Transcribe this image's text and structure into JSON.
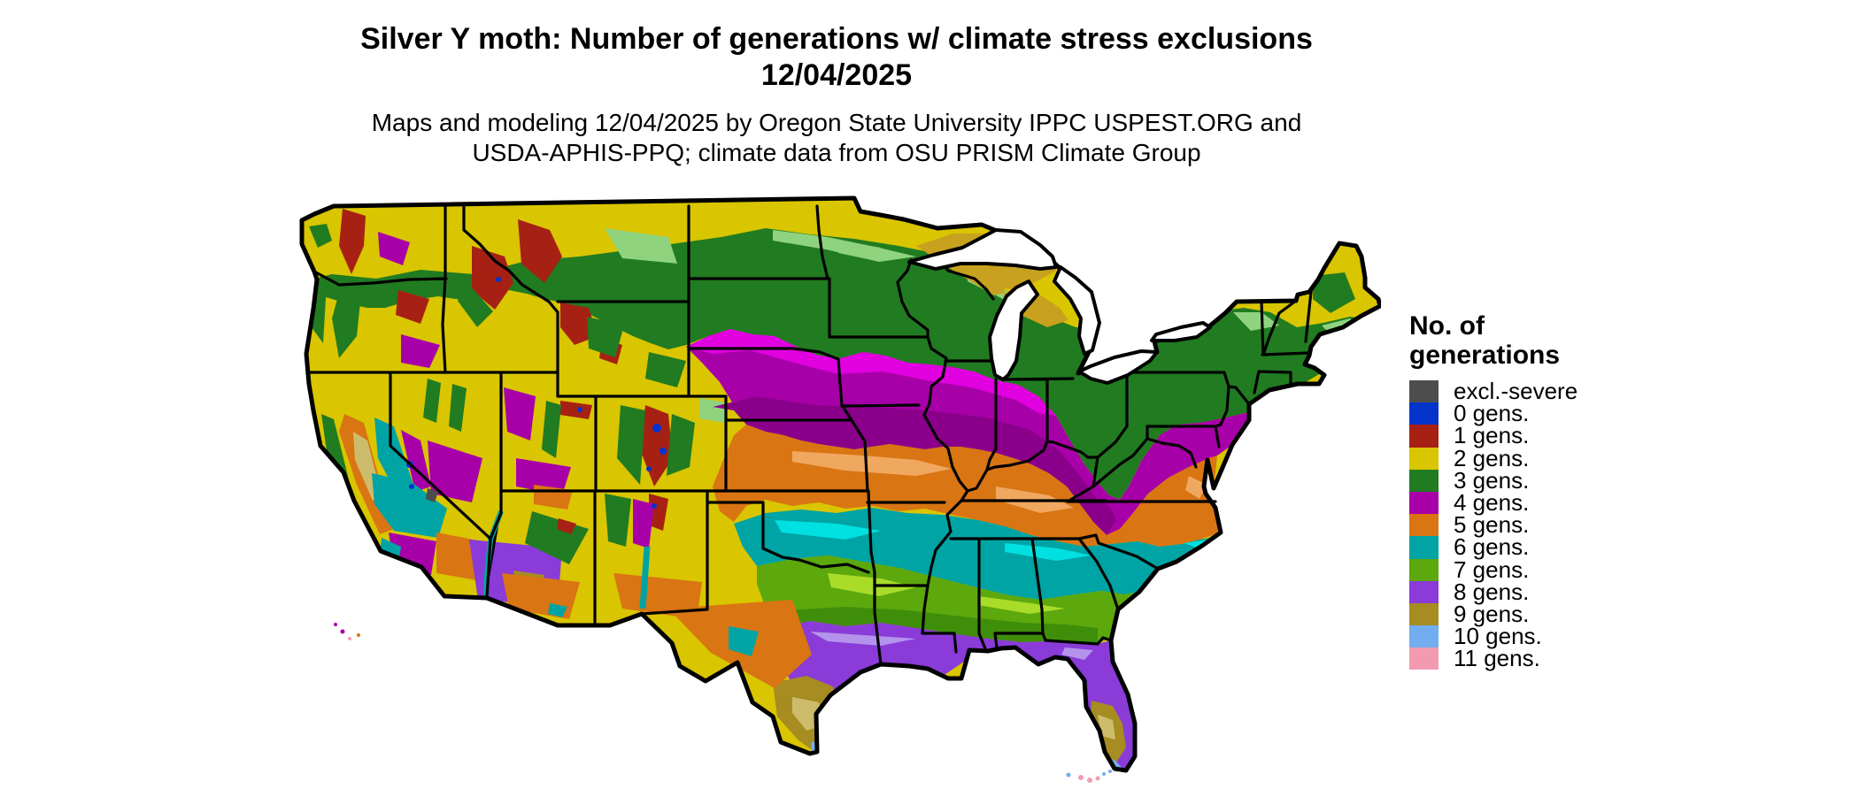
{
  "header": {
    "title_line1": "Silver Y moth: Number of generations w/ climate stress exclusions",
    "title_line2": "12/04/2025",
    "subtitle_line1": "Maps and modeling 12/04/2025 by Oregon State University IPPC USPEST.ORG and",
    "subtitle_line2": "USDA-APHIS-PPQ; climate data from OSU PRISM Climate Group"
  },
  "legend": {
    "title_line1": "No. of",
    "title_line2": "generations",
    "items": [
      {
        "key": "excl",
        "label": "excl.-severe"
      },
      {
        "key": "g0",
        "label": "0 gens."
      },
      {
        "key": "g1",
        "label": "1 gens."
      },
      {
        "key": "g2",
        "label": "2 gens."
      },
      {
        "key": "g3",
        "label": "3 gens."
      },
      {
        "key": "g4",
        "label": "4 gens."
      },
      {
        "key": "g5",
        "label": "5 gens."
      },
      {
        "key": "g6",
        "label": "6 gens."
      },
      {
        "key": "g7",
        "label": "7 gens."
      },
      {
        "key": "g8",
        "label": "8 gens."
      },
      {
        "key": "g9",
        "label": "9 gens."
      },
      {
        "key": "g10",
        "label": "10 gens."
      },
      {
        "key": "g11",
        "label": "11 gens."
      }
    ]
  },
  "colors": {
    "excl": "#4D4D4D",
    "g0": "#0433CC",
    "g1": "#A62114",
    "g2": "#D9C500",
    "g2_dark": "#C8A11E",
    "g3": "#217B21",
    "g3_light": "#8FD37F",
    "g4": "#A800A8",
    "g4_bright": "#E000E0",
    "g4_dark": "#8B008B",
    "g5": "#D97513",
    "g5_light": "#F0A860",
    "g6": "#00A4A4",
    "g6_light": "#00E0E0",
    "g7": "#5CA80D",
    "g7_light": "#A8DC28",
    "g7_dark": "#3F8E0A",
    "g8": "#8A3BD8",
    "g8_light": "#B493EC",
    "g9": "#A68C21",
    "g9_light": "#CDBC6B",
    "g10": "#72AEEF",
    "g11": "#F29BB0",
    "border": "#000000",
    "water": "#FFFFFF"
  }
}
